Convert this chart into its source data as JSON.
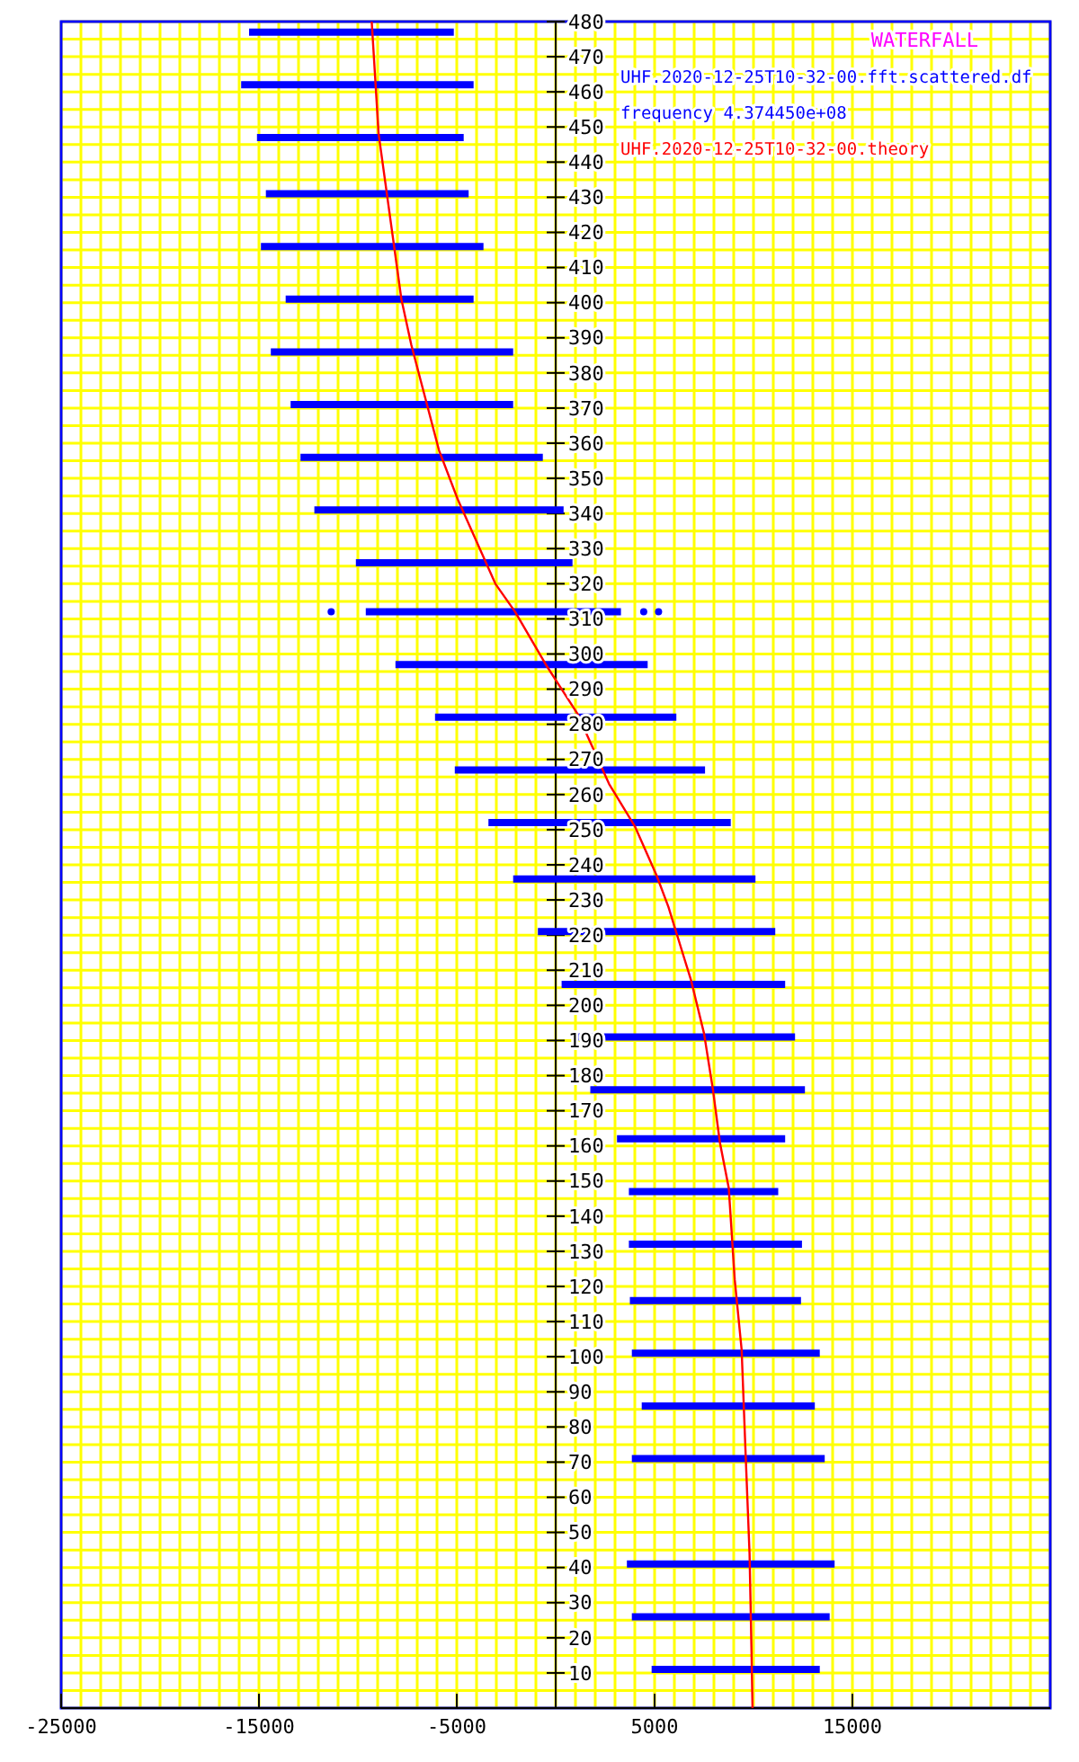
{
  "chart_data": {
    "type": "line",
    "title": "WATERFALL",
    "annotations": [
      "frequency 4.374450e+08"
    ],
    "legend": "top right",
    "xlim": [
      -25000,
      25000
    ],
    "ylim": [
      0,
      480
    ],
    "grid": true,
    "xticks": [
      -25000,
      {
        "value": -24000,
        "label": null
      },
      {
        "value": -23000,
        "label": null
      },
      {
        "value": -22000,
        "label": null
      },
      {
        "value": -21000,
        "label": null
      },
      {
        "value": -20000,
        "label": null
      },
      {
        "value": -19000,
        "label": null
      },
      {
        "value": -18000,
        "label": null
      },
      {
        "value": -17000,
        "label": null
      },
      {
        "value": -16000,
        "label": null
      },
      -15000,
      {
        "value": -14000,
        "label": null
      },
      {
        "value": -13000,
        "label": null
      },
      {
        "value": -12000,
        "label": null
      },
      {
        "value": -11000,
        "label": null
      },
      {
        "value": -10000,
        "label": null
      },
      {
        "value": -9000,
        "label": null
      },
      {
        "value": -8000,
        "label": null
      },
      {
        "value": -7000,
        "label": null
      },
      {
        "value": -6000,
        "label": null
      },
      -5000,
      {
        "value": -4000,
        "label": null
      },
      {
        "value": -3000,
        "label": null
      },
      {
        "value": -2000,
        "label": null
      },
      {
        "value": -1000,
        "label": null
      },
      {
        "value": 0,
        "label": null
      },
      {
        "value": 1000,
        "label": null
      },
      {
        "value": 2000,
        "label": null
      },
      {
        "value": 3000,
        "label": null
      },
      {
        "value": 4000,
        "label": null
      },
      5000,
      {
        "value": 6000,
        "label": null
      },
      {
        "value": 7000,
        "label": null
      },
      {
        "value": 8000,
        "label": null
      },
      {
        "value": 9000,
        "label": null
      },
      {
        "value": 10000,
        "label": null
      },
      {
        "value": 11000,
        "label": null
      },
      {
        "value": 12000,
        "label": null
      },
      {
        "value": 13000,
        "label": null
      },
      {
        "value": 14000,
        "label": null
      },
      15000,
      {
        "value": 16000,
        "label": null
      },
      {
        "value": 17000,
        "label": null
      },
      {
        "value": 18000,
        "label": null
      },
      {
        "value": 19000,
        "label": null
      },
      {
        "value": 20000,
        "label": null
      },
      {
        "value": 21000,
        "label": null
      },
      {
        "value": 22000,
        "label": null
      },
      {
        "value": 23000,
        "label": null
      },
      {
        "value": 24000,
        "label": null
      },
      {
        "value": 25000,
        "label": null
      }
    ],
    "yticks": [
      {
        "value": 0,
        "label": null
      },
      {
        "value": 5,
        "label": null
      },
      10,
      {
        "value": 15,
        "label": null
      },
      20,
      {
        "value": 25,
        "label": null
      },
      30,
      {
        "value": 35,
        "label": null
      },
      40,
      {
        "value": 45,
        "label": null
      },
      50,
      {
        "value": 55,
        "label": null
      },
      60,
      {
        "value": 65,
        "label": null
      },
      70,
      {
        "value": 75,
        "label": null
      },
      80,
      {
        "value": 85,
        "label": null
      },
      90,
      {
        "value": 95,
        "label": null
      },
      100,
      {
        "value": 105,
        "label": null
      },
      110,
      {
        "value": 115,
        "label": null
      },
      120,
      {
        "value": 125,
        "label": null
      },
      130,
      {
        "value": 135,
        "label": null
      },
      140,
      {
        "value": 145,
        "label": null
      },
      150,
      {
        "value": 155,
        "label": null
      },
      160,
      {
        "value": 165,
        "label": null
      },
      170,
      {
        "value": 175,
        "label": null
      },
      180,
      {
        "value": 185,
        "label": null
      },
      190,
      {
        "value": 195,
        "label": null
      },
      200,
      {
        "value": 205,
        "label": null
      },
      210,
      {
        "value": 215,
        "label": null
      },
      220,
      {
        "value": 225,
        "label": null
      },
      230,
      {
        "value": 235,
        "label": null
      },
      240,
      {
        "value": 245,
        "label": null
      },
      250,
      {
        "value": 255,
        "label": null
      },
      260,
      {
        "value": 265,
        "label": null
      },
      270,
      {
        "value": 275,
        "label": null
      },
      280,
      {
        "value": 285,
        "label": null
      },
      290,
      {
        "value": 295,
        "label": null
      },
      300,
      {
        "value": 305,
        "label": null
      },
      310,
      {
        "value": 315,
        "label": null
      },
      320,
      {
        "value": 325,
        "label": null
      },
      330,
      {
        "value": 335,
        "label": null
      },
      340,
      {
        "value": 345,
        "label": null
      },
      350,
      {
        "value": 355,
        "label": null
      },
      360,
      {
        "value": 365,
        "label": null
      },
      370,
      {
        "value": 375,
        "label": null
      },
      380,
      {
        "value": 385,
        "label": null
      },
      390,
      {
        "value": 395,
        "label": null
      },
      400,
      {
        "value": 405,
        "label": null
      },
      410,
      {
        "value": 415,
        "label": null
      },
      420,
      {
        "value": 425,
        "label": null
      },
      430,
      {
        "value": 435,
        "label": null
      },
      440,
      {
        "value": 445,
        "label": null
      },
      450,
      {
        "value": 455,
        "label": null
      },
      460,
      {
        "value": 465,
        "label": null
      },
      470,
      {
        "value": 475,
        "label": null
      },
      480
    ],
    "series": [
      {
        "name": "UHF.2020-12-25T10-32-00.fft.scattered.df",
        "color": "#0000ff",
        "x": [
          -15500,
          -5150,
          null,
          -15900,
          -4150,
          null,
          -15100,
          -4650,
          null,
          -14650,
          -4400,
          null,
          -14900,
          -3650,
          null,
          -13650,
          -4150,
          null,
          -14400,
          -2150,
          null,
          -13400,
          -2150,
          null,
          -12900,
          -650,
          null,
          -12200,
          400,
          null,
          -10100,
          850,
          null,
          -9600,
          3300,
          null,
          -8100,
          4650,
          null,
          -6100,
          6100,
          null,
          -5100,
          7550,
          null,
          -3400,
          8850,
          null,
          -2150,
          10100,
          null,
          -900,
          11100,
          null,
          300,
          11600,
          null,
          850,
          12100,
          null,
          1750,
          12600,
          null,
          3100,
          11600,
          null,
          3700,
          11250,
          null,
          3700,
          12450,
          null,
          3750,
          12400,
          null,
          3850,
          13350,
          null,
          4350,
          13100,
          null,
          3850,
          13600,
          null,
          3600,
          14100,
          null,
          3850,
          13850,
          null,
          4850,
          13350
        ],
        "values": [
          477,
          477,
          null,
          462,
          462,
          null,
          447,
          447,
          null,
          431,
          431,
          null,
          416,
          416,
          null,
          401,
          401,
          null,
          386,
          386,
          null,
          371,
          371,
          null,
          356,
          356,
          null,
          341,
          341,
          null,
          326,
          326,
          null,
          312,
          312,
          null,
          297,
          297,
          null,
          282,
          282,
          null,
          267,
          267,
          null,
          252,
          252,
          null,
          236,
          236,
          null,
          221,
          221,
          null,
          206,
          206,
          null,
          191,
          191,
          null,
          176,
          176,
          null,
          162,
          162,
          null,
          147,
          147,
          null,
          132,
          132,
          null,
          116,
          116,
          null,
          101,
          101,
          null,
          86,
          86,
          null,
          71,
          71,
          null,
          41,
          41,
          null,
          26,
          26,
          null,
          11,
          11
        ]
      },
      {
        "color": "#0000ff",
        "type": "scatter",
        "x": [
          -11350,
          4450,
          5200
        ],
        "values": [
          312,
          312,
          312
        ]
      },
      {
        "name": "UHF.2020-12-25T10-32-00.theory",
        "color": "#ff0000",
        "x": [
          -9300,
          -8950,
          -7800,
          -7300,
          -5900,
          -4950,
          -3050,
          -2050,
          -500,
          1100,
          2700,
          4000,
          5100,
          5700,
          6850,
          7500,
          7950,
          8300,
          8750,
          9050,
          9400,
          9600,
          9800,
          9900,
          9950
        ],
        "values": [
          480,
          448,
          401,
          388,
          358,
          344,
          320,
          312,
          297,
          283,
          263,
          251,
          237,
          228,
          207,
          192,
          176,
          161,
          148,
          122,
          102,
          72.5,
          44,
          16,
          0
        ]
      }
    ]
  }
}
